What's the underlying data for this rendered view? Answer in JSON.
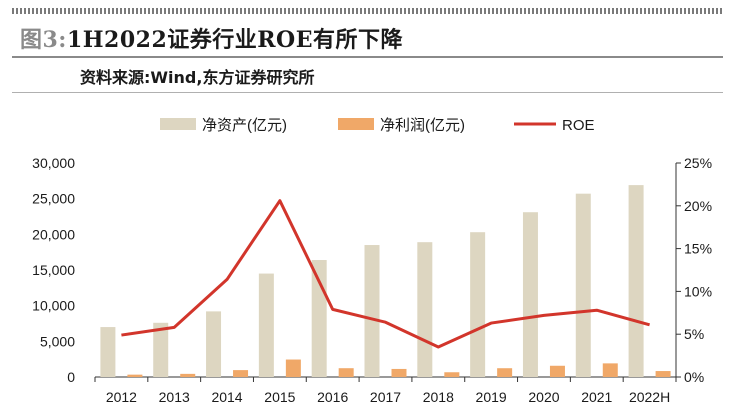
{
  "header": {
    "figure_number": "图3:",
    "title": "1H2022证券行业ROE有所下降",
    "source": "资料来源:Wind,东方证券研究所"
  },
  "colors": {
    "net_assets": "#ddd6c1",
    "net_profit": "#f0a868",
    "roe": "#d2352b",
    "axis": "#333333"
  },
  "chart_data": {
    "type": "bar",
    "title": "1H2022证券行业ROE有所下降",
    "xlabel": "",
    "ylabel": "",
    "categories": [
      "2012",
      "2013",
      "2014",
      "2015",
      "2016",
      "2017",
      "2018",
      "2019",
      "2020",
      "2021",
      "2022H"
    ],
    "series": [
      {
        "name": "净资产(亿元)",
        "type": "bar",
        "axis": "left",
        "values": [
          7000,
          7600,
          9200,
          14500,
          16400,
          18500,
          18900,
          20300,
          23100,
          25700,
          26900
        ]
      },
      {
        "name": "净利润(亿元)",
        "type": "bar",
        "axis": "left",
        "values": [
          330,
          440,
          966,
          2448,
          1234,
          1130,
          666,
          1231,
          1575,
          1911,
          835
        ]
      },
      {
        "name": "ROE",
        "type": "line",
        "axis": "right",
        "values": [
          4.9,
          5.8,
          11.4,
          20.6,
          7.9,
          6.4,
          3.5,
          6.3,
          7.2,
          7.8,
          6.1
        ]
      }
    ],
    "ylim": [
      0,
      30000
    ],
    "y2lim": [
      0,
      25
    ],
    "y_ticks": [
      "0",
      "5,000",
      "10,000",
      "15,000",
      "20,000",
      "25,000",
      "30,000"
    ],
    "y2_ticks": [
      "0%",
      "5%",
      "10%",
      "15%",
      "20%",
      "25%"
    ],
    "legend_position": "top",
    "grid": false
  }
}
